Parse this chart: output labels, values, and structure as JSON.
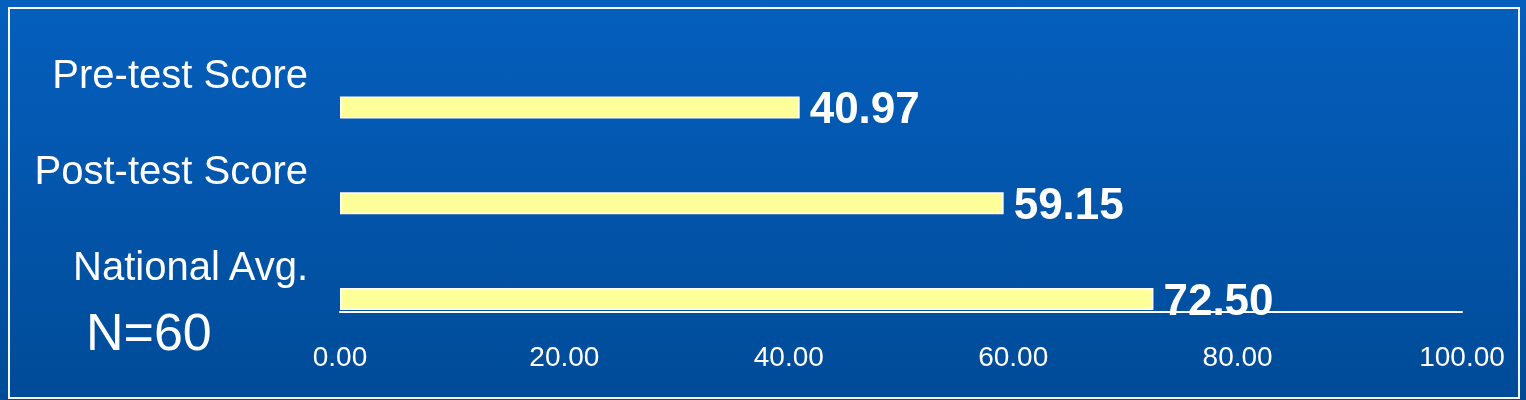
{
  "chart_data": {
    "type": "bar",
    "orientation": "horizontal",
    "categories": [
      "Pre-test Score",
      "Post-test Score",
      "National Avg."
    ],
    "values": [
      40.97,
      59.15,
      72.5
    ],
    "color": "#ffff99",
    "value_labels": [
      "40.97",
      "59.15",
      "72.50"
    ],
    "xlim": [
      0,
      100
    ],
    "xticks": [
      {
        "value": 0,
        "label": "0.00"
      },
      {
        "value": 20,
        "label": "20.00"
      },
      {
        "value": 40,
        "label": "40.00"
      },
      {
        "value": 60,
        "label": "60.00"
      },
      {
        "value": 80,
        "label": "80.00"
      },
      {
        "value": 100,
        "label": "100.00"
      }
    ],
    "annotations": [
      "N=60"
    ]
  }
}
